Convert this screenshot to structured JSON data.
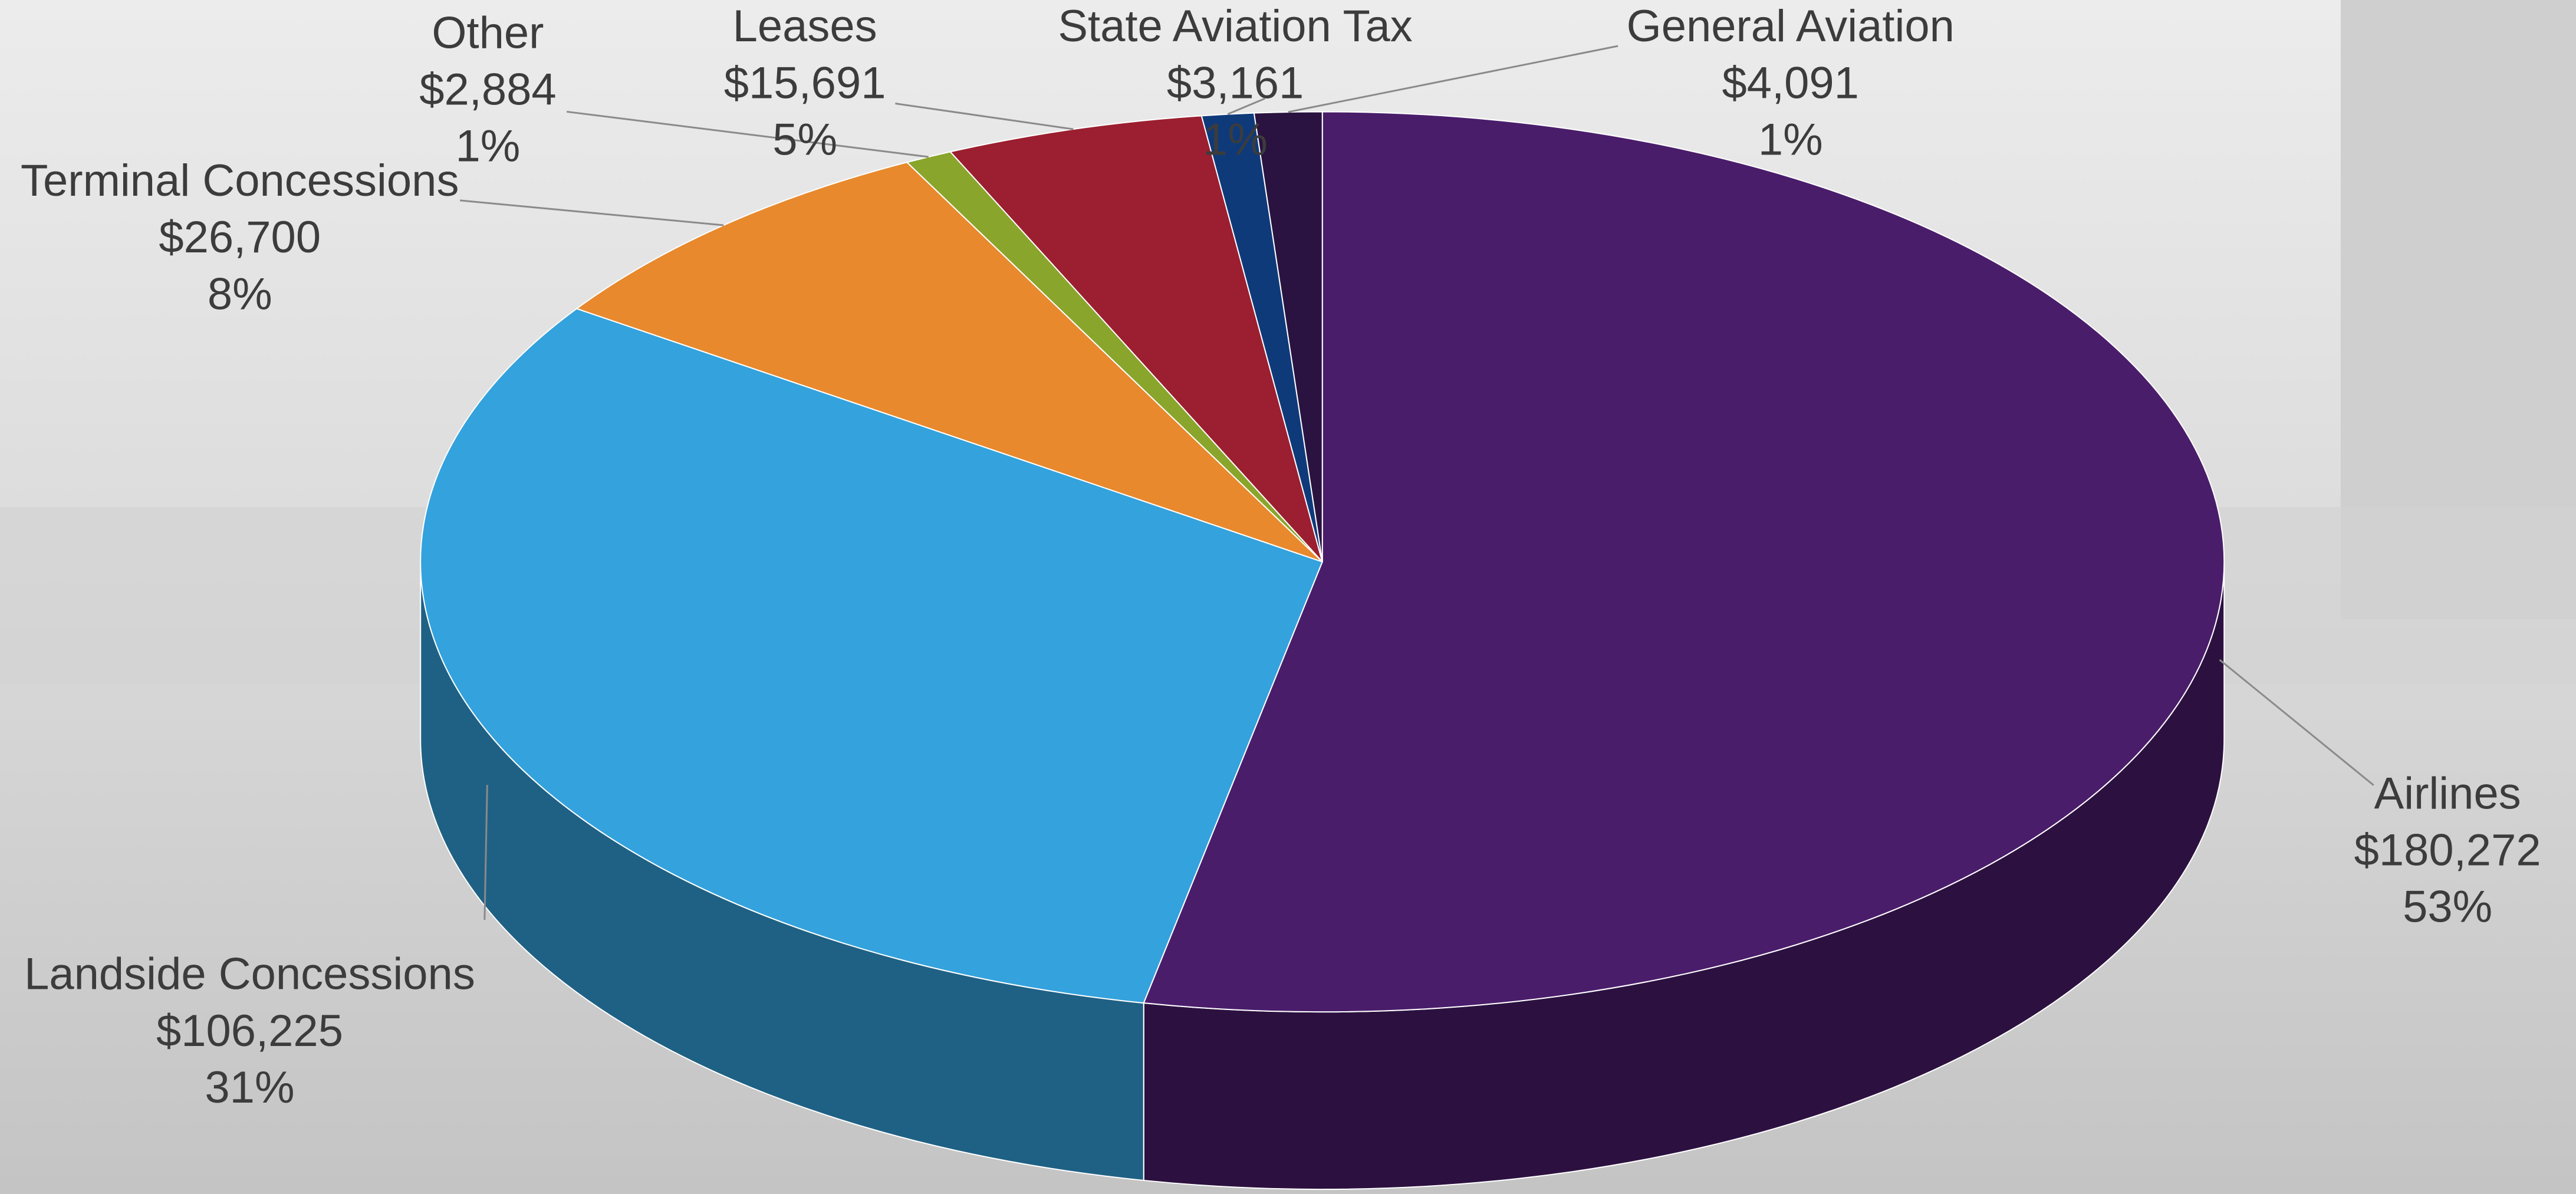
{
  "chart_data": {
    "type": "pie3d",
    "categories": [
      "Airlines",
      "Landside Concessions",
      "Terminal Concessions",
      "Other",
      "Leases",
      "State Aviation Tax",
      "General Aviation"
    ],
    "values": [
      180272,
      106225,
      26700,
      2884,
      15691,
      3161,
      4091
    ],
    "value_labels": [
      "$180,272",
      "$106,225",
      "$26,700",
      "$2,884",
      "$15,691",
      "$3,161",
      "$4,091"
    ],
    "percent_labels": [
      "53%",
      "31%",
      "8%",
      "1%",
      "5%",
      "1%",
      "1%"
    ],
    "colors": [
      "#4a1d6b",
      "#34a2dc",
      "#e8892d",
      "#8aa52b",
      "#9b1f30",
      "#0f3a7a",
      "#2a1340"
    ]
  }
}
